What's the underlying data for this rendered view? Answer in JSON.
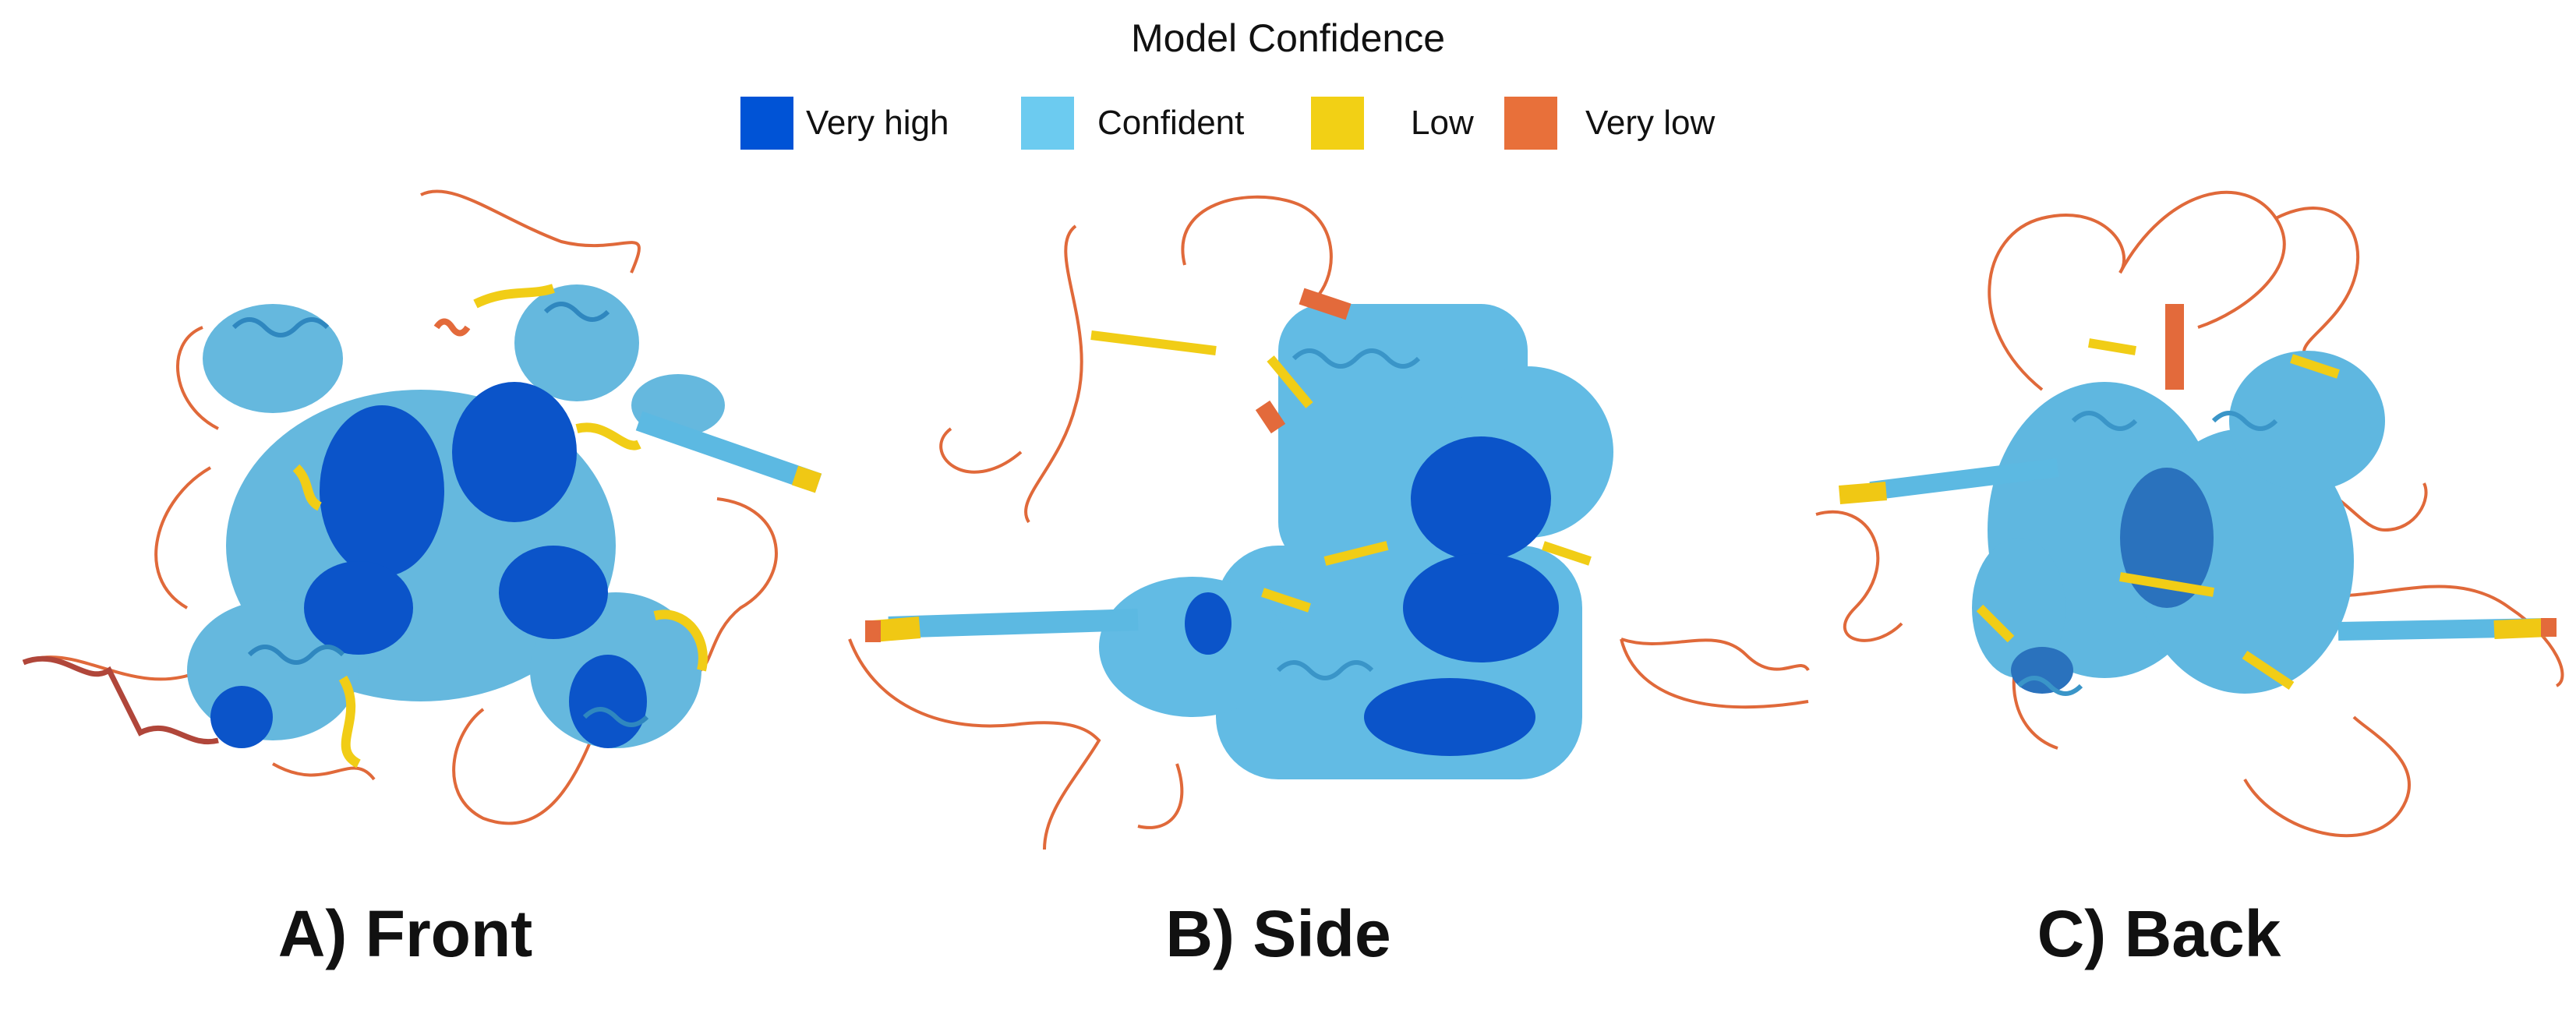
{
  "title": "Model Confidence",
  "legend": [
    {
      "label": "Very high",
      "color": "#0053d6"
    },
    {
      "label": "Confident",
      "color": "#65cbf3"
    },
    {
      "label": "Low",
      "color": "#ffdb13"
    },
    {
      "label": "Very low",
      "color": "#ff7d45"
    }
  ],
  "panels": [
    {
      "caption": "A) Front"
    },
    {
      "caption": "B) Side"
    },
    {
      "caption": "C) Back"
    }
  ]
}
